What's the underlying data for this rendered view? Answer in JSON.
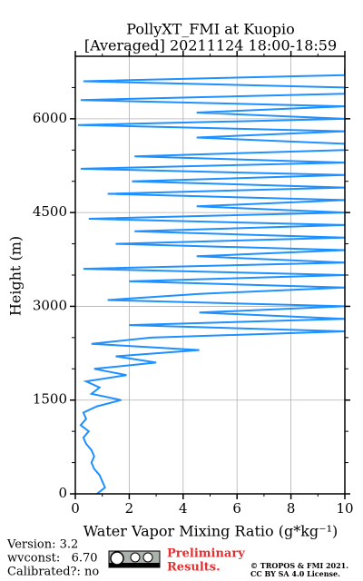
{
  "chart_data": {
    "type": "line",
    "title": [
      "PollyXT_FMI at Kuopio",
      "[Averaged] 20211124 18:00-18:59"
    ],
    "x_label": "Water Vapor Mixing Ratio (g*kg⁻¹)",
    "y_label": "Height (m)",
    "heights": [
      0,
      100,
      200,
      300,
      400,
      500,
      600,
      700,
      800,
      900,
      1000,
      1100,
      1200,
      1300,
      1400,
      1500,
      1600,
      1700,
      1800,
      1900,
      2000,
      2100,
      2200,
      2300,
      2400,
      2500,
      2600,
      2700,
      2800,
      2900,
      3000,
      3100,
      3200,
      3300,
      3400,
      3500,
      3600,
      3700,
      3800,
      3900,
      4000,
      4100,
      4200,
      4300,
      4400,
      4500,
      4600,
      4700,
      4800,
      4900,
      5000,
      5100,
      5200,
      5300,
      5400,
      5500,
      5600,
      5700,
      5800,
      5900,
      6000,
      6100,
      6200,
      6300,
      6400,
      6500,
      6600,
      6700,
      6800
    ],
    "series": [
      {
        "color": "#1e90ff",
        "values": [
          0.8,
          1.1,
          1.0,
          0.9,
          0.7,
          0.6,
          0.7,
          0.6,
          0.4,
          0.3,
          0.5,
          0.2,
          0.4,
          0.3,
          0.8,
          1.7,
          0.6,
          0.9,
          0.4,
          1.9,
          0.7,
          3.0,
          1.5,
          4.6,
          0.6,
          2.8,
          10,
          2.0,
          10,
          4.6,
          10,
          1.2,
          4.6,
          10,
          2.0,
          10,
          0.3,
          10,
          4.5,
          10,
          1.5,
          10,
          2.2,
          10,
          0.5,
          10,
          4.5,
          10,
          1.2,
          10,
          2.1,
          10,
          0.2,
          10,
          2.2,
          10,
          10,
          4.5,
          10,
          0.1,
          10,
          4.5,
          10,
          0.2,
          10,
          10,
          0.3,
          10,
          10
        ]
      }
    ],
    "xlim": [
      0,
      10
    ],
    "xticks": [
      0,
      2,
      4,
      6,
      8,
      10
    ],
    "xminorticks": [
      1,
      3,
      5,
      7,
      9
    ],
    "ylim": [
      0,
      7000
    ],
    "yticks": [
      0,
      1500,
      3000,
      4500,
      6000
    ],
    "yminorticks": [
      500,
      1000,
      2000,
      2500,
      3500,
      4000,
      5000,
      5500,
      6500
    ],
    "grid": true
  },
  "footer": {
    "version": "Version: 3.2",
    "wvconst": "wvconst:   6.70",
    "calibrated": "Calibrated?: no",
    "status": [
      "Preliminary",
      "Results."
    ],
    "copyright": [
      "© TROPOS & FMI 2021.",
      "CC BY SA 4.0 License."
    ]
  }
}
